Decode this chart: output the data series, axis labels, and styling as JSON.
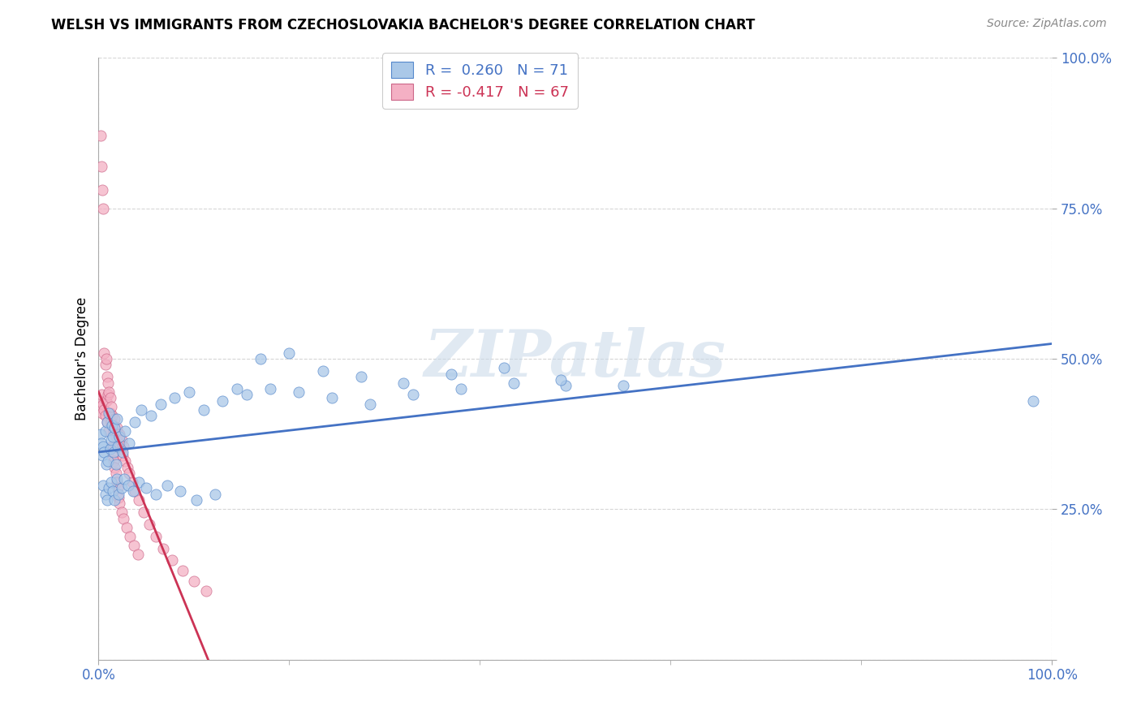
{
  "title": "WELSH VS IMMIGRANTS FROM CZECHOSLOVAKIA BACHELOR'S DEGREE CORRELATION CHART",
  "source": "Source: ZipAtlas.com",
  "ylabel": "Bachelor's Degree",
  "welsh_R": 0.26,
  "welsh_N": 71,
  "czech_R": -0.417,
  "czech_N": 67,
  "welsh_color": "#aac8e8",
  "czech_color": "#f4b0c4",
  "welsh_edge_color": "#5588cc",
  "czech_edge_color": "#cc6688",
  "welsh_line_color": "#4472c4",
  "czech_line_color": "#cc3355",
  "background_color": "#ffffff",
  "watermark": "ZIPatlas",
  "grid_color": "#cccccc",
  "welsh_x": [
    0.002,
    0.003,
    0.004,
    0.005,
    0.006,
    0.007,
    0.008,
    0.009,
    0.01,
    0.011,
    0.012,
    0.013,
    0.014,
    0.015,
    0.016,
    0.017,
    0.018,
    0.019,
    0.02,
    0.022,
    0.025,
    0.028,
    0.032,
    0.038,
    0.045,
    0.055,
    0.065,
    0.08,
    0.095,
    0.11,
    0.13,
    0.155,
    0.18,
    0.21,
    0.245,
    0.285,
    0.33,
    0.38,
    0.435,
    0.49,
    0.005,
    0.007,
    0.009,
    0.011,
    0.013,
    0.015,
    0.017,
    0.019,
    0.021,
    0.024,
    0.027,
    0.031,
    0.036,
    0.042,
    0.05,
    0.06,
    0.072,
    0.086,
    0.103,
    0.122,
    0.145,
    0.17,
    0.2,
    0.235,
    0.275,
    0.32,
    0.37,
    0.425,
    0.485,
    0.55,
    0.98
  ],
  "welsh_y": [
    0.375,
    0.36,
    0.34,
    0.355,
    0.345,
    0.38,
    0.325,
    0.395,
    0.33,
    0.41,
    0.35,
    0.365,
    0.39,
    0.37,
    0.345,
    0.385,
    0.325,
    0.4,
    0.355,
    0.37,
    0.345,
    0.38,
    0.36,
    0.395,
    0.415,
    0.405,
    0.425,
    0.435,
    0.445,
    0.415,
    0.43,
    0.44,
    0.45,
    0.445,
    0.435,
    0.425,
    0.44,
    0.45,
    0.46,
    0.455,
    0.29,
    0.275,
    0.265,
    0.285,
    0.295,
    0.28,
    0.265,
    0.3,
    0.275,
    0.285,
    0.3,
    0.29,
    0.28,
    0.295,
    0.285,
    0.275,
    0.29,
    0.28,
    0.265,
    0.275,
    0.45,
    0.5,
    0.51,
    0.48,
    0.47,
    0.46,
    0.475,
    0.485,
    0.465,
    0.455,
    0.43
  ],
  "czech_x": [
    0.001,
    0.002,
    0.003,
    0.004,
    0.005,
    0.006,
    0.007,
    0.008,
    0.009,
    0.01,
    0.011,
    0.012,
    0.013,
    0.014,
    0.015,
    0.016,
    0.017,
    0.018,
    0.019,
    0.02,
    0.021,
    0.022,
    0.023,
    0.024,
    0.025,
    0.026,
    0.028,
    0.03,
    0.032,
    0.035,
    0.038,
    0.042,
    0.047,
    0.053,
    0.06,
    0.068,
    0.077,
    0.088,
    0.1,
    0.113,
    0.002,
    0.003,
    0.004,
    0.005,
    0.006,
    0.007,
    0.008,
    0.009,
    0.01,
    0.011,
    0.012,
    0.013,
    0.014,
    0.015,
    0.016,
    0.017,
    0.018,
    0.019,
    0.02,
    0.021,
    0.022,
    0.024,
    0.026,
    0.029,
    0.033,
    0.037,
    0.041
  ],
  "czech_y": [
    0.43,
    0.42,
    0.44,
    0.41,
    0.425,
    0.415,
    0.405,
    0.43,
    0.395,
    0.44,
    0.38,
    0.41,
    0.395,
    0.405,
    0.39,
    0.38,
    0.4,
    0.37,
    0.385,
    0.375,
    0.36,
    0.375,
    0.35,
    0.365,
    0.34,
    0.355,
    0.33,
    0.32,
    0.31,
    0.295,
    0.28,
    0.265,
    0.245,
    0.225,
    0.205,
    0.185,
    0.165,
    0.148,
    0.13,
    0.115,
    0.87,
    0.82,
    0.78,
    0.75,
    0.51,
    0.49,
    0.5,
    0.47,
    0.46,
    0.445,
    0.435,
    0.42,
    0.355,
    0.34,
    0.33,
    0.32,
    0.31,
    0.295,
    0.285,
    0.27,
    0.26,
    0.245,
    0.235,
    0.22,
    0.205,
    0.19,
    0.175
  ],
  "welsh_line_x": [
    0.0,
    1.0
  ],
  "welsh_line_y": [
    0.345,
    0.525
  ],
  "czech_line_x": [
    0.0,
    0.115
  ],
  "czech_line_y": [
    0.445,
    0.0
  ],
  "xlim": [
    0.0,
    1.0
  ],
  "ylim": [
    0.0,
    1.0
  ],
  "xticks": [
    0.0,
    1.0
  ],
  "xticklabels": [
    "0.0%",
    "100.0%"
  ],
  "yticks": [
    0.0,
    0.25,
    0.5,
    0.75,
    1.0
  ],
  "yticklabels": [
    "",
    "25.0%",
    "50.0%",
    "75.0%",
    "100.0%"
  ]
}
